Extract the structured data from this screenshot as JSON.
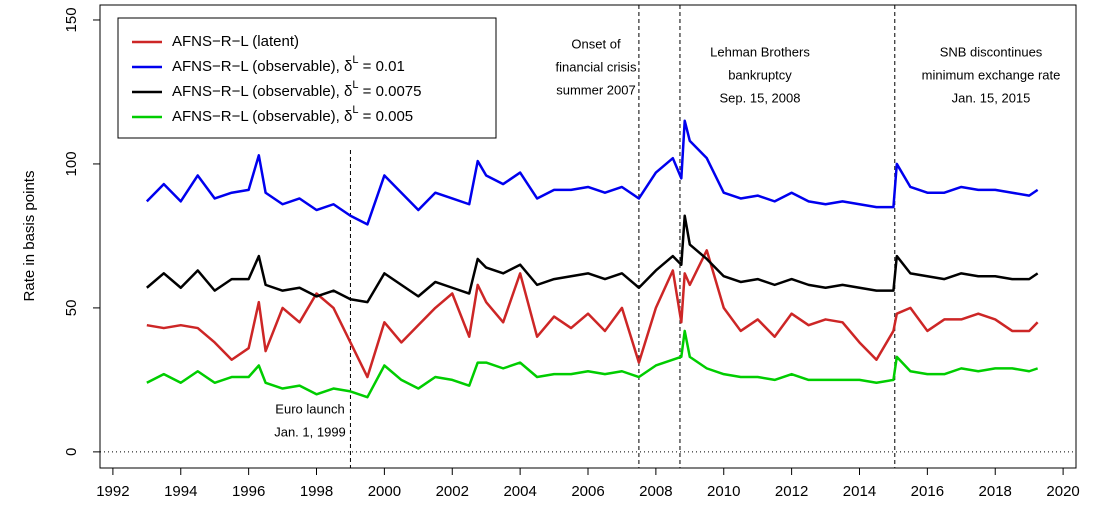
{
  "chart_data": {
    "type": "line",
    "y_label": "Rate in basis points",
    "x": [
      1993,
      1993.5,
      1994,
      1994.5,
      1995,
      1995.5,
      1996,
      1996.3,
      1996.5,
      1997,
      1997.5,
      1998,
      1998.5,
      1999,
      1999.5,
      2000,
      2000.5,
      2001,
      2001.5,
      2002,
      2002.5,
      2002.75,
      2003,
      2003.5,
      2004,
      2004.5,
      2005,
      2005.5,
      2006,
      2006.5,
      2007,
      2007.5,
      2008,
      2008.5,
      2008.75,
      2008.85,
      2009,
      2009.5,
      2010,
      2010.5,
      2011,
      2011.5,
      2012,
      2012.5,
      2013,
      2013.5,
      2014,
      2014.5,
      2015,
      2015.1,
      2015.5,
      2016,
      2016.5,
      2017,
      2017.5,
      2018,
      2018.5,
      2019,
      2019.25
    ],
    "series": [
      {
        "name": "AFNS−R−L (latent)",
        "color": "#cd2626",
        "values": [
          44,
          43,
          44,
          43,
          38,
          32,
          36,
          52,
          35,
          50,
          45,
          55,
          50,
          38,
          26,
          45,
          38,
          44,
          50,
          55,
          40,
          58,
          52,
          45,
          62,
          40,
          47,
          43,
          48,
          42,
          50,
          31,
          50,
          63,
          45,
          62,
          58,
          70,
          50,
          42,
          46,
          40,
          48,
          44,
          46,
          45,
          38,
          32,
          42,
          48,
          50,
          42,
          46,
          46,
          48,
          46,
          42,
          42,
          45
        ]
      },
      {
        "name": "AFNS−R−L (observable), δL = 0.01",
        "color": "#0000ee",
        "values": [
          87,
          93,
          87,
          96,
          88,
          90,
          91,
          103,
          90,
          86,
          88,
          84,
          86,
          82,
          79,
          96,
          90,
          84,
          90,
          88,
          86,
          101,
          96,
          93,
          97,
          88,
          91,
          91,
          92,
          90,
          92,
          88,
          97,
          102,
          95,
          115,
          108,
          102,
          90,
          88,
          89,
          87,
          90,
          87,
          86,
          87,
          86,
          85,
          85,
          100,
          92,
          90,
          90,
          92,
          91,
          91,
          90,
          89,
          91
        ]
      },
      {
        "name": "AFNS−R−L (observable), δL = 0.0075",
        "color": "#000000",
        "values": [
          57,
          62,
          57,
          63,
          56,
          60,
          60,
          68,
          58,
          56,
          57,
          54,
          56,
          53,
          52,
          62,
          58,
          54,
          59,
          57,
          55,
          67,
          64,
          62,
          65,
          58,
          60,
          61,
          62,
          60,
          62,
          57,
          63,
          68,
          65,
          82,
          72,
          67,
          61,
          59,
          60,
          58,
          60,
          58,
          57,
          58,
          57,
          56,
          56,
          68,
          62,
          61,
          60,
          62,
          61,
          61,
          60,
          60,
          62
        ]
      },
      {
        "name": "AFNS−R−L (observable), δL = 0.005",
        "color": "#00cd00",
        "values": [
          24,
          27,
          24,
          28,
          24,
          26,
          26,
          30,
          24,
          22,
          23,
          20,
          22,
          21,
          19,
          30,
          25,
          22,
          26,
          25,
          23,
          31,
          31,
          29,
          31,
          26,
          27,
          27,
          28,
          27,
          28,
          26,
          30,
          32,
          33,
          42,
          33,
          29,
          27,
          26,
          26,
          25,
          27,
          25,
          25,
          25,
          25,
          24,
          25,
          33,
          28,
          27,
          27,
          29,
          28,
          29,
          29,
          28,
          29
        ]
      }
    ],
    "xlim": [
      1991.62,
      2020.38
    ],
    "ylim": [
      -5.6,
      155.2
    ],
    "xticks": [
      1992,
      1994,
      1996,
      1998,
      2000,
      2002,
      2004,
      2006,
      2008,
      2010,
      2012,
      2014,
      2016,
      2018,
      2020
    ],
    "yticks": [
      0,
      50,
      100,
      150
    ],
    "reference_line": 0,
    "events": [
      {
        "x": 1999.0,
        "label": [
          "Euro launch",
          "Jan. 1, 1999"
        ]
      },
      {
        "x": 2007.5,
        "label": [
          "Onset of",
          "financial crisis",
          "summer 2007"
        ]
      },
      {
        "x": 2008.71,
        "label": [
          "Lehman Brothers",
          "bankruptcy",
          "Sep. 15, 2008"
        ]
      },
      {
        "x": 2015.04,
        "label": [
          "SNB discontinues",
          "minimum exchange rate",
          "Jan. 15, 2015"
        ]
      }
    ],
    "legend": "top-left"
  }
}
